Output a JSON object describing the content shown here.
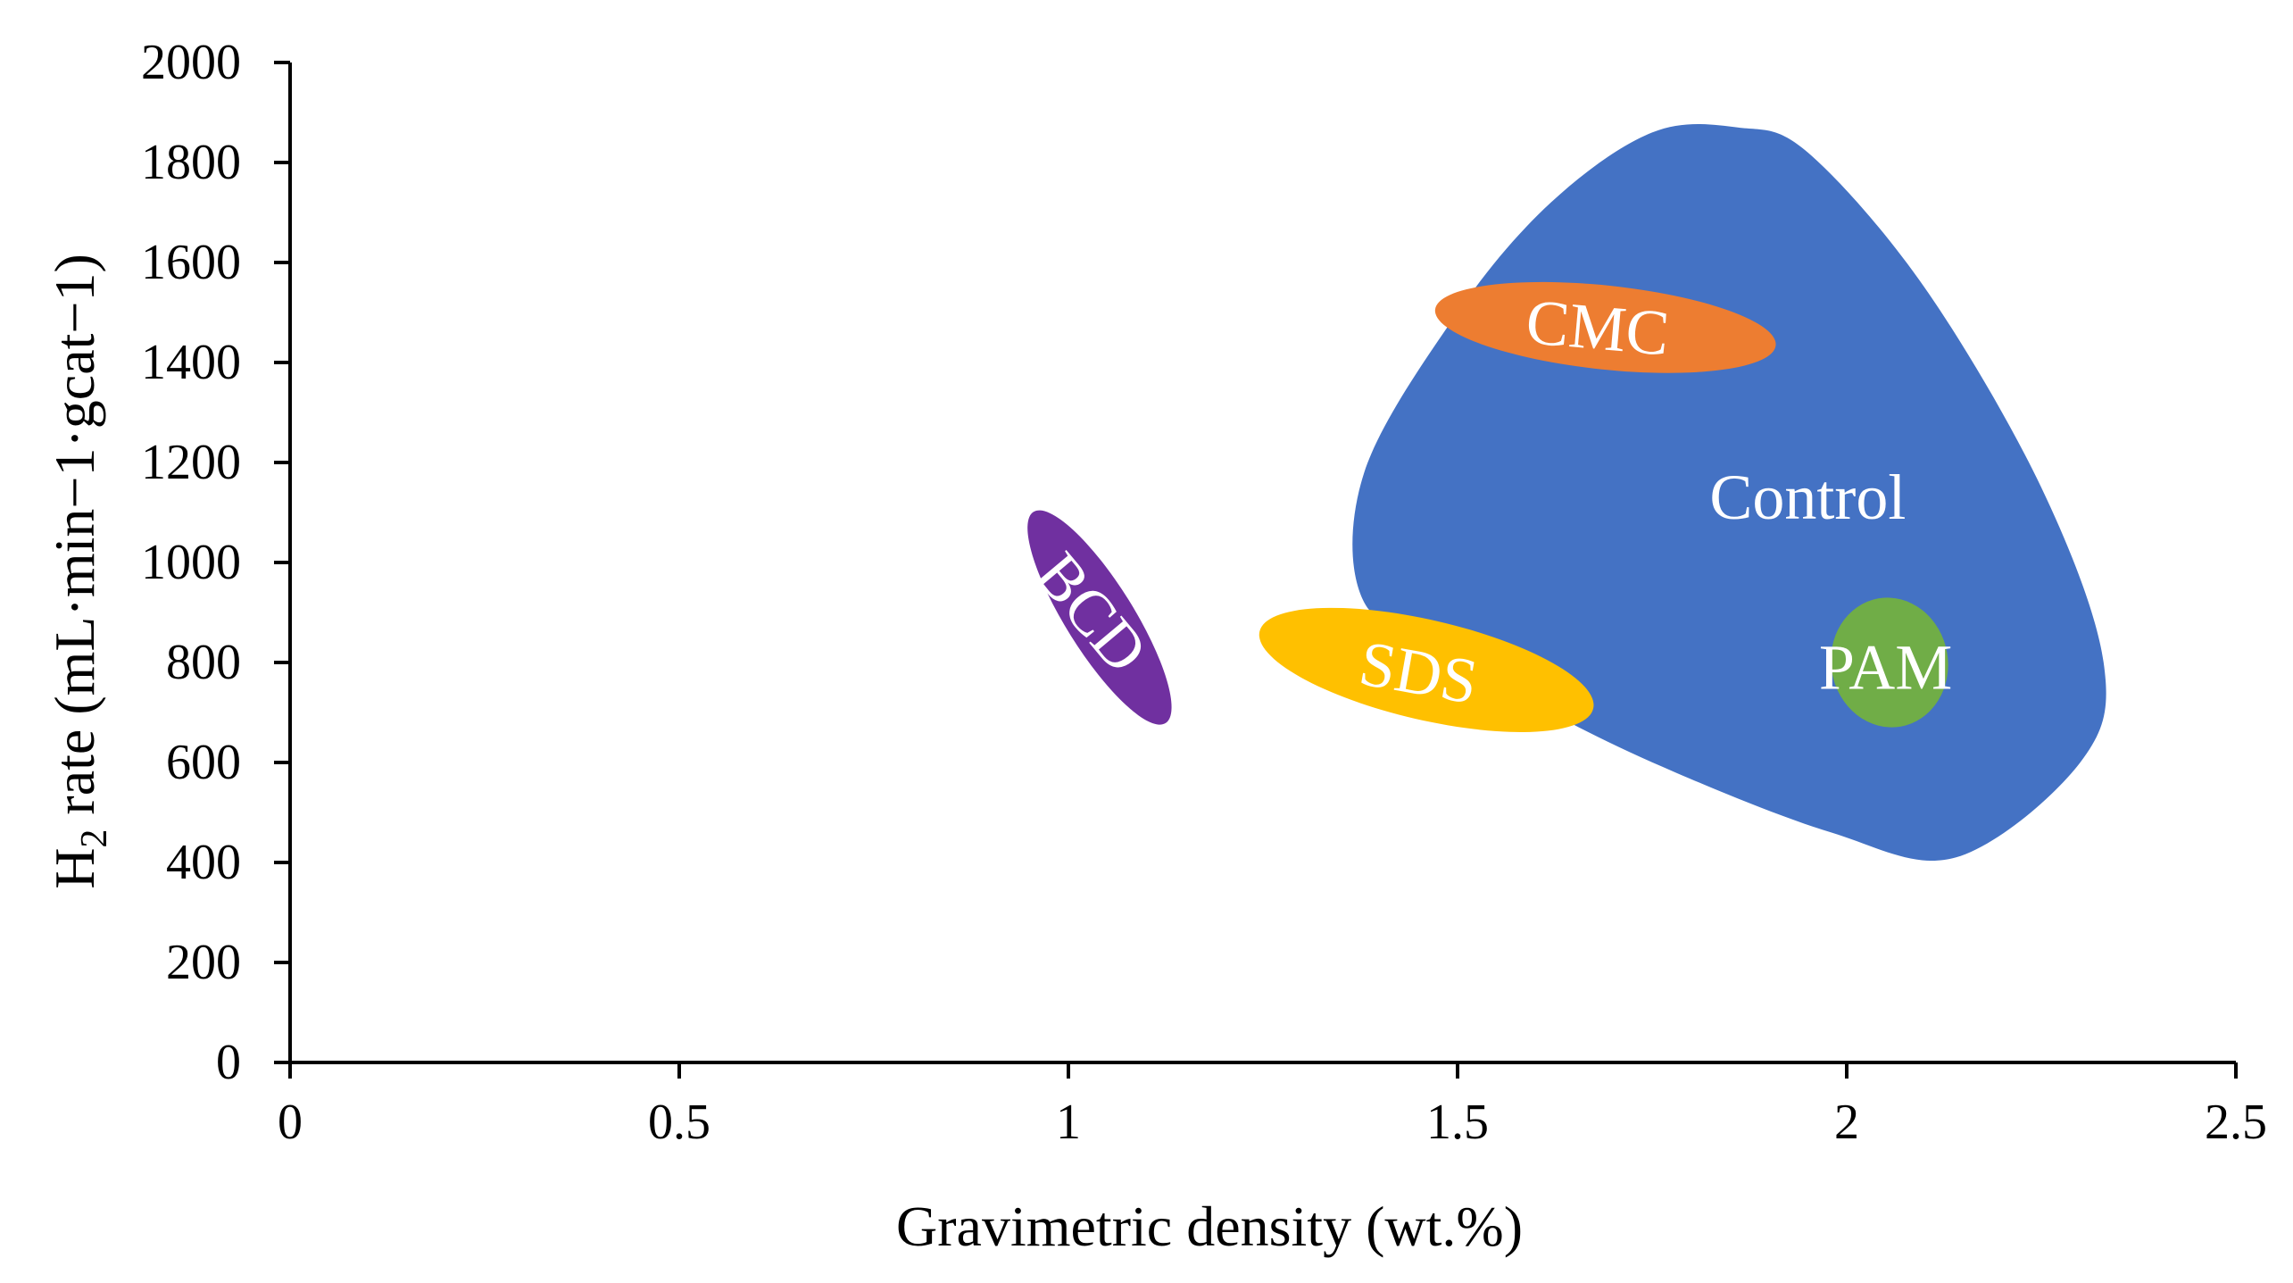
{
  "chart_data": {
    "type": "scatter",
    "title": "",
    "xlabel": "Gravimetric density (wt.%)",
    "ylabel": {
      "prefix": "H",
      "subscript": "2",
      "suffix": " rate (mL·min−1·gcat−1)"
    },
    "xlim": [
      0,
      2.5
    ],
    "ylim": [
      0,
      2000
    ],
    "x_ticks": [
      0,
      0.5,
      1,
      1.5,
      2,
      2.5
    ],
    "x_tick_labels": [
      "0",
      "0.5",
      "1",
      "1.5",
      "2",
      "2.5"
    ],
    "y_ticks": [
      0,
      200,
      400,
      600,
      800,
      1000,
      1200,
      1400,
      1600,
      1800,
      2000
    ],
    "y_tick_labels": [
      "0",
      "200",
      "400",
      "600",
      "800",
      "1000",
      "1200",
      "1400",
      "1600",
      "1800",
      "2000"
    ],
    "grid": false,
    "legend": "none",
    "regions": [
      {
        "name": "Control",
        "label": "Control",
        "color": "#4472C4",
        "shape": "blob",
        "boundary": [
          [
            1.86,
            1870
          ],
          [
            1.95,
            1820
          ],
          [
            2.1,
            1550
          ],
          [
            2.25,
            1150
          ],
          [
            2.33,
            800
          ],
          [
            2.3,
            600
          ],
          [
            2.14,
            410
          ],
          [
            1.98,
            460
          ],
          [
            1.78,
            580
          ],
          [
            1.62,
            700
          ],
          [
            1.5,
            820
          ],
          [
            1.38,
            920
          ],
          [
            1.38,
            1180
          ],
          [
            1.5,
            1500
          ],
          [
            1.62,
            1720
          ],
          [
            1.75,
            1860
          ]
        ],
        "label_at": [
          1.95,
          1130
        ]
      },
      {
        "name": "CMC",
        "label": "CMC",
        "color": "#ED7D31",
        "shape": "ellipse",
        "center": [
          1.69,
          1470
        ],
        "rx": 0.22,
        "ry": 84,
        "tilt_deg": 6,
        "label_at": [
          1.68,
          1470
        ],
        "label_rotate_deg": 5
      },
      {
        "name": "SDS",
        "label": "SDS",
        "color": "#FFC000",
        "shape": "ellipse",
        "center": [
          1.46,
          785
        ],
        "rx": 0.22,
        "ry": 100,
        "tilt_deg": 13,
        "label_at": [
          1.45,
          780
        ],
        "label_rotate_deg": 10
      },
      {
        "name": "BCD",
        "label": "BCD",
        "color": "#7030A0",
        "shape": "ellipse",
        "center": [
          1.04,
          890
        ],
        "rx": 0.16,
        "ry": 68,
        "tilt_deg": 58,
        "label_at": [
          1.03,
          900
        ],
        "label_rotate_deg": 50
      },
      {
        "name": "PAM",
        "label": "PAM",
        "color": "#70AD47",
        "shape": "ellipse",
        "center": [
          2.055,
          800
        ],
        "rx": 0.075,
        "ry": 130,
        "tilt_deg": -10,
        "label_at": [
          2.05,
          790
        ],
        "label_rotate_deg": 0
      }
    ]
  }
}
